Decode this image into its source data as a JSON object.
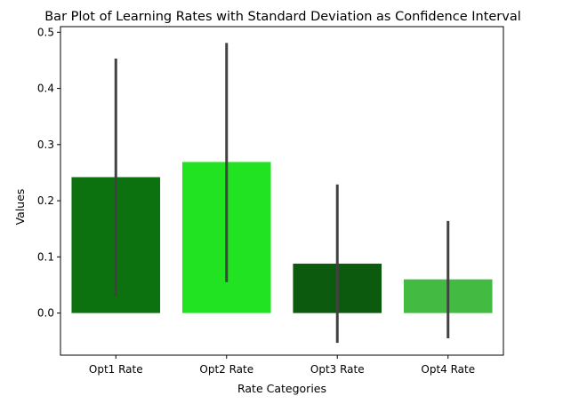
{
  "chart_data": {
    "type": "bar",
    "title": "Bar Plot of Learning Rates with Standard Deviation as Confidence Interval",
    "xlabel": "Rate Categories",
    "ylabel": "Values",
    "categories": [
      "Opt1 Rate",
      "Opt2 Rate",
      "Opt3 Rate",
      "Opt4 Rate"
    ],
    "values": [
      0.242,
      0.269,
      0.088,
      0.06
    ],
    "error_low": [
      0.03,
      0.055,
      -0.053,
      -0.045
    ],
    "error_high": [
      0.453,
      0.481,
      0.229,
      0.164
    ],
    "colors": [
      "#0c7210",
      "#22e322",
      "#0b5a0d",
      "#43bb43"
    ],
    "error_color": "#424242",
    "ylim": [
      -0.075,
      0.51
    ],
    "yticks": [
      0.0,
      0.1,
      0.2,
      0.3,
      0.4,
      0.5
    ],
    "ytick_labels": [
      "0.0",
      "0.1",
      "0.2",
      "0.3",
      "0.4",
      "0.5"
    ],
    "grid": false,
    "legend": "none"
  }
}
